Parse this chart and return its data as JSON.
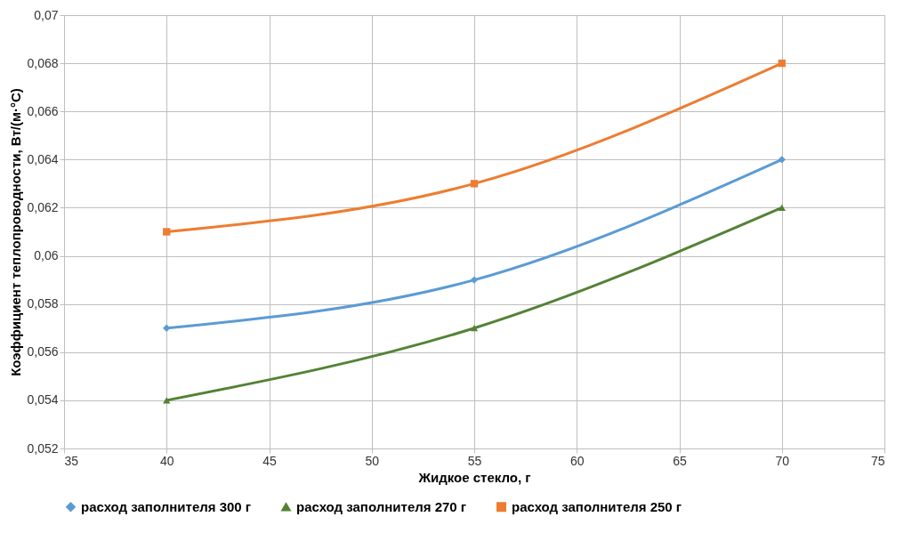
{
  "chart_data": {
    "type": "line",
    "xlabel": "Жидкое стекло, г",
    "ylabel": "Коэффициент теплопроводности, Вт/(м·°С)",
    "x": [
      40,
      55,
      70
    ],
    "series": [
      {
        "name": "расход заполнителя 300 г",
        "color": "#5b9bd5",
        "marker": "diamond",
        "values": [
          0.057,
          0.059,
          0.064
        ]
      },
      {
        "name": "расход заполнителя 270 г",
        "color": "#548235",
        "marker": "triangle",
        "values": [
          0.054,
          0.057,
          0.062
        ]
      },
      {
        "name": "расход заполнителя 250 г",
        "color": "#ed7d31",
        "marker": "square",
        "values": [
          0.061,
          0.063,
          0.068
        ]
      }
    ],
    "xlim": [
      35,
      75
    ],
    "xticks": [
      35,
      40,
      45,
      50,
      55,
      60,
      65,
      70,
      75
    ],
    "ylim": [
      0.052,
      0.07
    ],
    "yticks": [
      {
        "value": 0.052,
        "label": "0,052"
      },
      {
        "value": 0.054,
        "label": "0,054"
      },
      {
        "value": 0.056,
        "label": "0,056"
      },
      {
        "value": 0.058,
        "label": "0,058"
      },
      {
        "value": 0.06,
        "label": "0,06"
      },
      {
        "value": 0.062,
        "label": "0,062"
      },
      {
        "value": 0.064,
        "label": "0,064"
      },
      {
        "value": 0.066,
        "label": "0,066"
      },
      {
        "value": 0.068,
        "label": "0,068"
      },
      {
        "value": 0.07,
        "label": "0,07"
      }
    ],
    "grid": true,
    "legend": "bottom",
    "line_style": "solid"
  }
}
